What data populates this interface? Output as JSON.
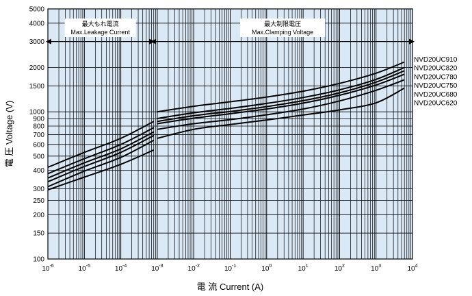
{
  "chart_data": {
    "type": "line",
    "xlabel": "電 流 Current (A)",
    "ylabel": "電 圧 Voltage (V)",
    "x_scale": "log",
    "y_scale": "log",
    "xlim": [
      1e-06,
      10000
    ],
    "ylim": [
      100,
      5000
    ],
    "x_tick_labels": [
      {
        "value": 1e-06,
        "base": "10",
        "exp": "-6"
      },
      {
        "value": 1e-05,
        "base": "10",
        "exp": "-5"
      },
      {
        "value": 0.0001,
        "base": "10",
        "exp": "-4"
      },
      {
        "value": 0.001,
        "base": "10",
        "exp": "-3"
      },
      {
        "value": 0.01,
        "base": "10",
        "exp": "-2"
      },
      {
        "value": 0.1,
        "base": "10",
        "exp": "-1"
      },
      {
        "value": 1,
        "base": "10",
        "exp": "0"
      },
      {
        "value": 10,
        "base": "10",
        "exp": "1"
      },
      {
        "value": 100,
        "base": "10",
        "exp": "2"
      },
      {
        "value": 1000,
        "base": "10",
        "exp": "3"
      },
      {
        "value": 10000,
        "base": "10",
        "exp": "4"
      }
    ],
    "y_tick_labels": [
      "100",
      "150",
      "200",
      "250",
      "300",
      "400",
      "500",
      "600",
      "700",
      "800",
      "900",
      "1000",
      "1500",
      "2000",
      "3000",
      "4000",
      "5000"
    ],
    "grid": true,
    "regions": [
      {
        "label_jp": "最大もれ電流",
        "label_en": "Max.Leakage Current",
        "x_from": 1e-06,
        "x_to": 0.00075,
        "arrow_y": 3000
      },
      {
        "label_jp": "最大制限電圧",
        "label_en": "Max.Clamping Voltage",
        "x_from": 0.00075,
        "x_to": 10000,
        "arrow_y": 3000
      }
    ],
    "series": [
      {
        "name": "NVD20UC910",
        "leakage": [
          [
            1e-06,
            420
          ],
          [
            1e-05,
            530
          ],
          [
            0.0001,
            660
          ],
          [
            0.0008,
            860
          ]
        ],
        "clamping": [
          [
            0.001,
            1000
          ],
          [
            0.01,
            1090
          ],
          [
            0.1,
            1170
          ],
          [
            1,
            1260
          ],
          [
            10,
            1380
          ],
          [
            100,
            1560
          ],
          [
            1000,
            1830
          ],
          [
            6000,
            2180
          ]
        ]
      },
      {
        "name": "NVD20UC820",
        "leakage": [
          [
            1e-06,
            380
          ],
          [
            1e-05,
            480
          ],
          [
            0.0001,
            600
          ],
          [
            0.0008,
            780
          ]
        ],
        "clamping": [
          [
            0.001,
            900
          ],
          [
            0.01,
            985
          ],
          [
            0.1,
            1055
          ],
          [
            1,
            1140
          ],
          [
            10,
            1250
          ],
          [
            100,
            1410
          ],
          [
            1000,
            1660
          ],
          [
            6000,
            2000
          ]
        ]
      },
      {
        "name": "NVD20UC780",
        "leakage": [
          [
            1e-06,
            355
          ],
          [
            1e-05,
            450
          ],
          [
            0.0001,
            560
          ],
          [
            0.0008,
            730
          ]
        ],
        "clamping": [
          [
            0.001,
            860
          ],
          [
            0.01,
            940
          ],
          [
            0.1,
            1005
          ],
          [
            1,
            1085
          ],
          [
            10,
            1190
          ],
          [
            100,
            1345
          ],
          [
            1000,
            1590
          ],
          [
            6000,
            1900
          ]
        ]
      },
      {
        "name": "NVD20UC750",
        "leakage": [
          [
            1e-06,
            335
          ],
          [
            1e-05,
            425
          ],
          [
            0.0001,
            530
          ],
          [
            0.0008,
            690
          ]
        ],
        "clamping": [
          [
            0.001,
            830
          ],
          [
            0.01,
            905
          ],
          [
            0.1,
            970
          ],
          [
            1,
            1045
          ],
          [
            10,
            1145
          ],
          [
            100,
            1295
          ],
          [
            1000,
            1520
          ],
          [
            6000,
            1800
          ]
        ]
      },
      {
        "name": "NVD20UC680",
        "leakage": [
          [
            1e-06,
            310
          ],
          [
            1e-05,
            395
          ],
          [
            0.0001,
            490
          ],
          [
            0.0008,
            640
          ]
        ],
        "clamping": [
          [
            0.001,
            760
          ],
          [
            0.01,
            830
          ],
          [
            0.1,
            885
          ],
          [
            1,
            955
          ],
          [
            10,
            1045
          ],
          [
            100,
            1185
          ],
          [
            1000,
            1400
          ],
          [
            6000,
            1650
          ]
        ]
      },
      {
        "name": "NVD20UC620",
        "leakage": [
          [
            1e-06,
            295
          ],
          [
            1e-05,
            360
          ],
          [
            0.0001,
            440
          ],
          [
            0.0008,
            550
          ]
        ],
        "clamping": [
          [
            0.001,
            660
          ],
          [
            0.01,
            760
          ],
          [
            0.1,
            820
          ],
          [
            1,
            880
          ],
          [
            10,
            950
          ],
          [
            100,
            1030
          ],
          [
            1000,
            1150
          ],
          [
            6000,
            1450
          ]
        ]
      }
    ]
  }
}
